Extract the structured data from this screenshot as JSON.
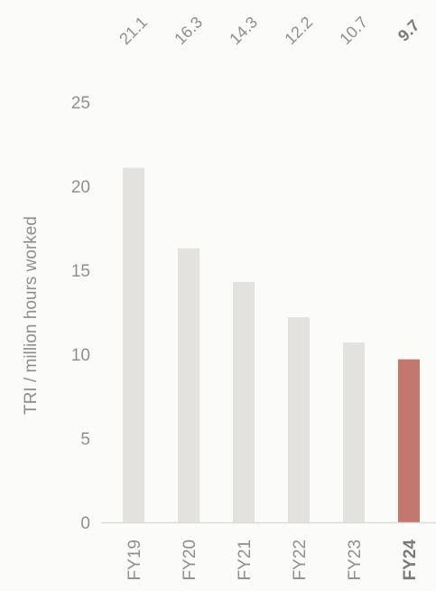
{
  "chart_data": {
    "type": "bar",
    "categories": [
      "FY19",
      "FY20",
      "FY21",
      "FY22",
      "FY23",
      "FY24"
    ],
    "values": [
      21.1,
      16.3,
      14.3,
      12.2,
      10.7,
      9.7
    ],
    "value_labels": [
      "21.1",
      "16.3",
      "14.3",
      "12.2",
      "10.7",
      "9.7"
    ],
    "highlight_index": 5,
    "title": "",
    "xlabel": "",
    "ylabel": "TRI / million hours worked",
    "ylim": [
      0,
      25
    ],
    "yticks": [
      0,
      5,
      10,
      15,
      20,
      25
    ],
    "grid": false,
    "legend": "none",
    "colors": {
      "bar": "#e3e2de",
      "highlight_bar": "#c3776d",
      "axis_line": "#dcdcd8",
      "text": "#8f8f8f",
      "background": "#fbfbf9"
    }
  }
}
